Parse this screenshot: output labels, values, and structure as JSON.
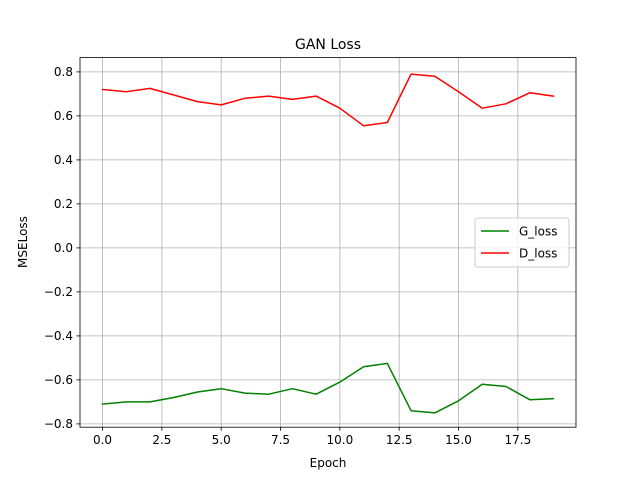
{
  "chart_data": {
    "type": "line",
    "title": "GAN Loss",
    "xlabel": "Epoch",
    "ylabel": "MSELoss",
    "x": [
      0,
      1,
      2,
      3,
      4,
      5,
      6,
      7,
      8,
      9,
      10,
      11,
      12,
      13,
      14,
      15,
      16,
      17,
      18,
      19
    ],
    "series": [
      {
        "name": "G_loss",
        "color": "#008000",
        "values": [
          -0.71,
          -0.7,
          -0.7,
          -0.68,
          -0.655,
          -0.64,
          -0.66,
          -0.665,
          -0.64,
          -0.665,
          -0.61,
          -0.54,
          -0.525,
          -0.74,
          -0.75,
          -0.695,
          -0.62,
          -0.63,
          -0.69,
          -0.685
        ]
      },
      {
        "name": "D_loss",
        "color": "#ff0000",
        "values": [
          0.72,
          0.71,
          0.725,
          0.695,
          0.665,
          0.65,
          0.68,
          0.69,
          0.675,
          0.69,
          0.635,
          0.555,
          0.57,
          0.79,
          0.78,
          0.71,
          0.635,
          0.655,
          0.705,
          0.69
        ]
      }
    ],
    "xlim": [
      -0.95,
      19.95
    ],
    "ylim": [
      -0.815,
      0.865
    ],
    "xticks": [
      0.0,
      2.5,
      5.0,
      7.5,
      10.0,
      12.5,
      15.0,
      17.5
    ],
    "xtick_labels": [
      "0.0",
      "2.5",
      "5.0",
      "7.5",
      "10.0",
      "12.5",
      "15.0",
      "17.5"
    ],
    "yticks": [
      -0.8,
      -0.6,
      -0.4,
      -0.2,
      0.0,
      0.2,
      0.4,
      0.6,
      0.8
    ],
    "ytick_labels": [
      "−0.8",
      "−0.6",
      "−0.4",
      "−0.2",
      "0.0",
      "0.2",
      "0.4",
      "0.6",
      "0.8"
    ],
    "grid": true,
    "legend_position": "center-right"
  }
}
